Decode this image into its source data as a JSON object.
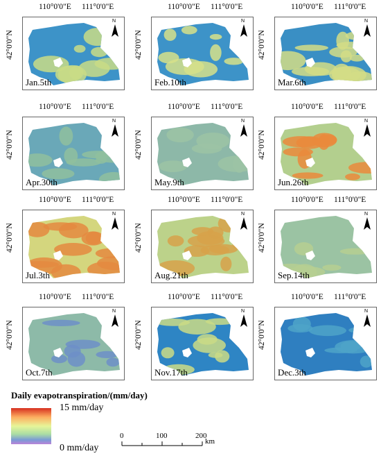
{
  "axis_labels": {
    "lon_left": "110°0'0\"E",
    "lon_right": "111°0'0\"E",
    "lat": "42°0'0\"N",
    "north": "N"
  },
  "panels": [
    {
      "date": "Jan.5th"
    },
    {
      "date": "Feb.10th"
    },
    {
      "date": "Mar.6th"
    },
    {
      "date": "Apr.30th"
    },
    {
      "date": "May.9th"
    },
    {
      "date": "Jun.26th"
    },
    {
      "date": "Jul.3th"
    },
    {
      "date": "Aug.21th"
    },
    {
      "date": "Sep.14th"
    },
    {
      "date": "Oct.7th"
    },
    {
      "date": "Nov.17th"
    },
    {
      "date": "Dec.3th"
    }
  ],
  "legend": {
    "title": "Daily evapotranspiration/(mm/day)",
    "max_label": "15 mm/day",
    "min_label": "0 mm/day",
    "colors": [
      "#d7301f",
      "#fdae61",
      "#e6f598",
      "#abdda4",
      "#7b9bd6",
      "#b983d8"
    ]
  },
  "scale_bar": {
    "ticks": [
      "0",
      "100",
      "200"
    ],
    "unit": "km"
  }
}
